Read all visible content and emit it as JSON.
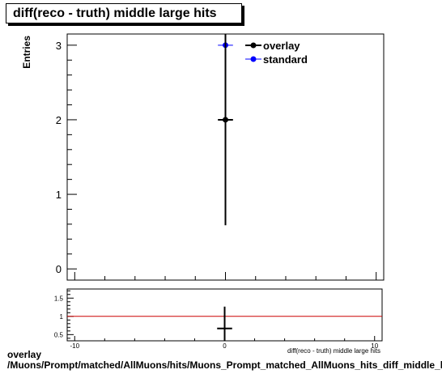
{
  "chart_data": [
    {
      "type": "scatter",
      "title": "diff(reco - truth) middle large hits",
      "ylabel": "Entries",
      "xlabel": "diff(reco - truth) middle large hits",
      "xlim": [
        -10.5,
        10.5
      ],
      "ylim": [
        -0.15,
        3.15
      ],
      "x_ticks": [
        -10,
        0,
        10
      ],
      "y_ticks": [
        0,
        1,
        2,
        3
      ],
      "legend_position": "top-right",
      "series": [
        {
          "name": "overlay",
          "color": "#000000",
          "points": [
            {
              "x": 0,
              "y": 2,
              "xerr": 0.5,
              "yerr": 1.414
            }
          ]
        },
        {
          "name": "standard",
          "color": "#0000ff",
          "points": [
            {
              "x": 0,
              "y": 3,
              "xerr": 0.5,
              "yerr": 1.732
            }
          ]
        }
      ]
    },
    {
      "type": "scatter",
      "title": "",
      "xlim": [
        -10.5,
        10.5
      ],
      "ylim": [
        0.33,
        1.75
      ],
      "x_ticks": [
        -10,
        0,
        10
      ],
      "y_ticks": [
        0.5,
        1,
        1.5
      ],
      "reference_line": {
        "y": 1,
        "color": "#cc0000"
      },
      "series": [
        {
          "name": "",
          "color": "#000000",
          "points": [
            {
              "x": 0,
              "y": 0.667,
              "xerr": 0.5,
              "yerr": 0.6
            }
          ]
        }
      ]
    }
  ],
  "footer": {
    "line1": "overlay",
    "line2": "/Muons/Prompt/matched/AllMuons/hits/Muons_Prompt_matched_AllMuons_hits_diff_middle_large_hits"
  }
}
